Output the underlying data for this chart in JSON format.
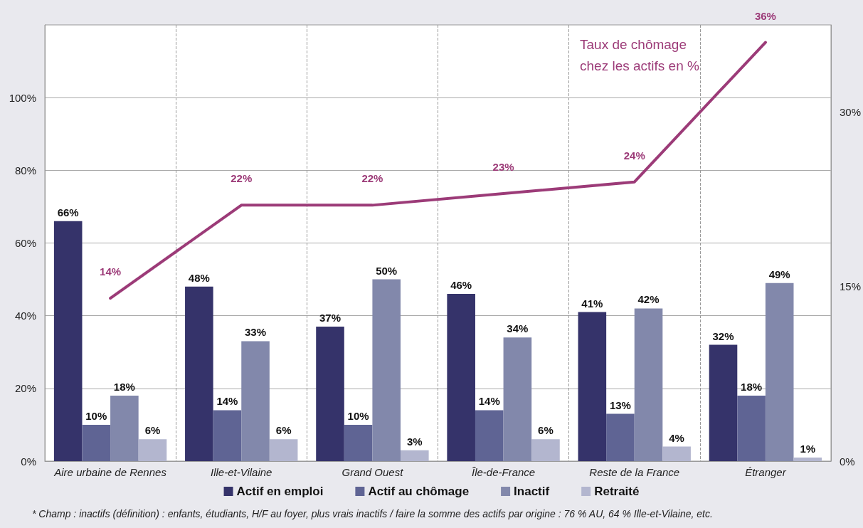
{
  "chart_data": {
    "type": "bar",
    "categories": [
      "Aire urbaine de Rennes",
      "Ille-et-Vilaine",
      "Grand Ouest",
      "Île-de-France",
      "Reste de la France",
      "Étranger"
    ],
    "series": [
      {
        "name": "Actif en emploi",
        "color": "#35336a",
        "values": [
          66,
          48,
          37,
          46,
          41,
          32
        ],
        "value_labels": [
          "66%",
          "48%",
          "37%",
          "46%",
          "41%",
          "32%"
        ]
      },
      {
        "name": "Actif au chômage",
        "color": "#5f6494",
        "values": [
          10,
          14,
          10,
          14,
          13,
          18
        ],
        "value_labels": [
          "10%",
          "14%",
          "10%",
          "14%",
          "13%",
          "18%"
        ]
      },
      {
        "name": "Inactif",
        "color": "#8288ab",
        "values": [
          18,
          33,
          50,
          34,
          42,
          49
        ],
        "value_labels": [
          "18%",
          "33%",
          "50%",
          "34%",
          "42%",
          "49%"
        ]
      },
      {
        "name": "Retraité",
        "color": "#b3b6cf",
        "values": [
          6,
          6,
          3,
          6,
          4,
          1
        ],
        "value_labels": [
          "6%",
          "6%",
          "3%",
          "6%",
          "4%",
          "1%"
        ]
      },
      {
        "name": "Taux de chômage\nchez les actifs en %",
        "type": "line",
        "axis": "y2",
        "color": "#9c3b78",
        "values": [
          14,
          22,
          22,
          23,
          24,
          36
        ],
        "value_labels": [
          "14%",
          "22%",
          "22%",
          "23%",
          "24%",
          "36%"
        ]
      }
    ],
    "ylim": [
      0,
      120
    ],
    "yticks": [
      {
        "value": 0,
        "label": "0%"
      },
      {
        "value": 20,
        "label": "20%"
      },
      {
        "value": 40,
        "label": "40%"
      },
      {
        "value": 60,
        "label": "60%"
      },
      {
        "value": 80,
        "label": "80%"
      },
      {
        "value": 100,
        "label": "100%"
      }
    ],
    "y2lim": [
      0,
      37.5
    ],
    "y2ticks": [
      {
        "value": 0,
        "label": "0%"
      },
      {
        "value": 15,
        "label": "15%"
      },
      {
        "value": 30,
        "label": "30%"
      }
    ],
    "grid": true,
    "legend": "bottom",
    "marker": "none",
    "line_style": "solid",
    "annotations": [
      "* Champ : inactifs (définition) : enfants, étudiants, H/F au foyer, plus vrais inactifs / faire la somme des actifs par origine : 76 % AU, 64 % Ille-et-Vilaine, etc."
    ]
  }
}
